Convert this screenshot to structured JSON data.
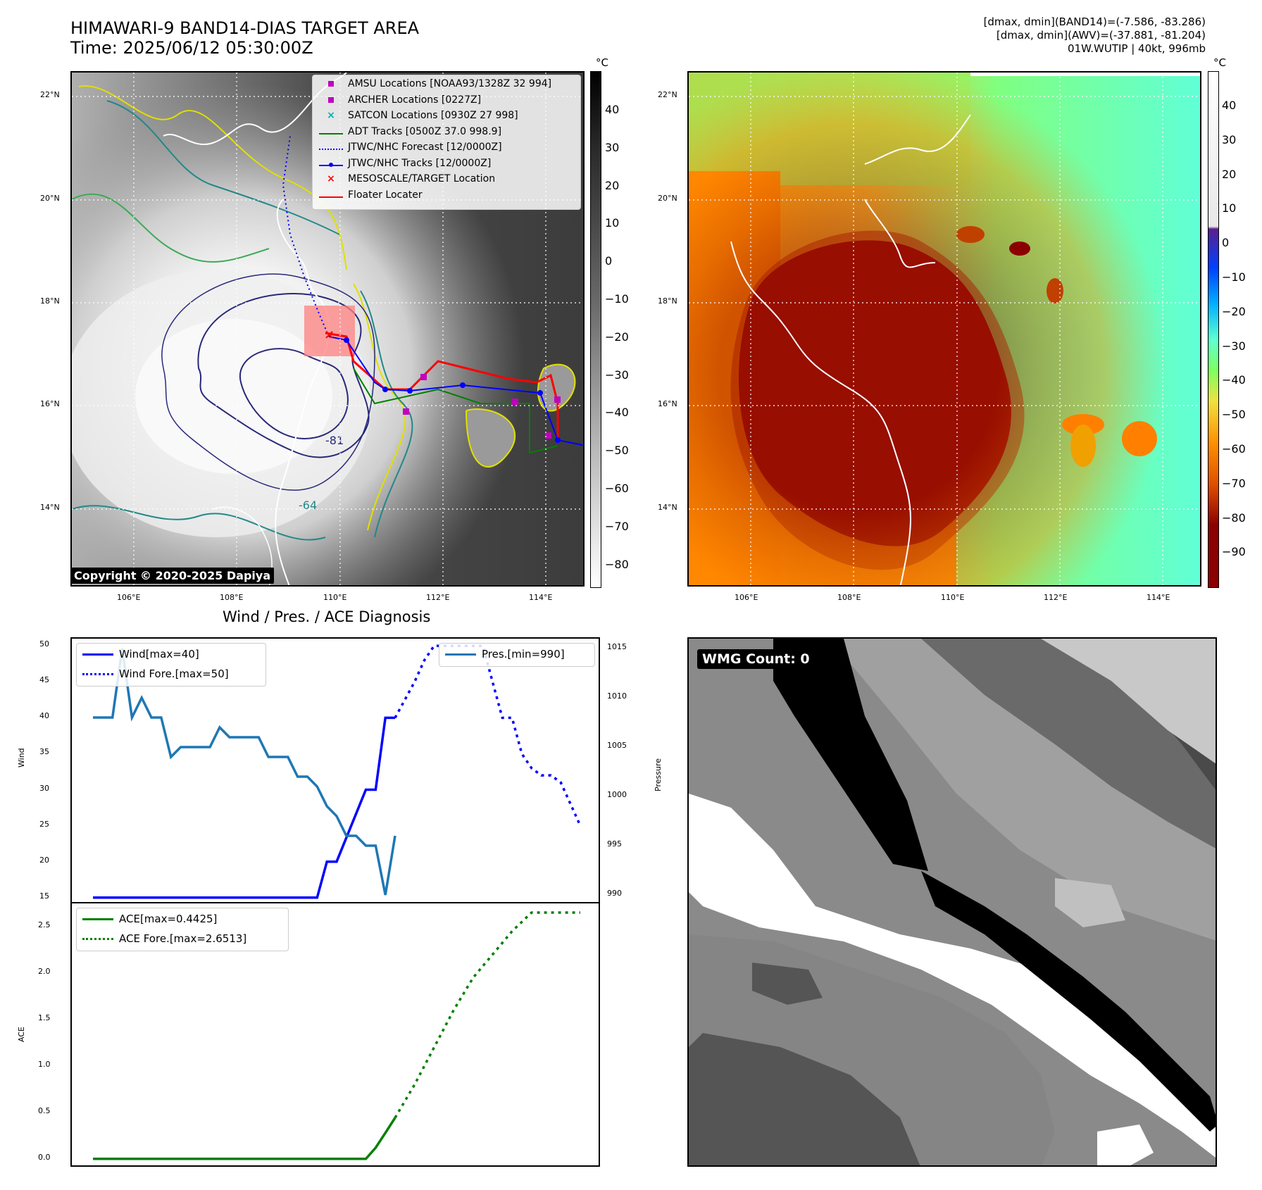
{
  "header": {
    "title_line1": "HIMAWARI-9 BAND14-DIAS TARGET AREA",
    "title_line2": "Time: 2025/06/12 05:30:00Z",
    "info_line1": "[dmax, dmin](BAND14)=(-7.586, -83.286)",
    "info_line2": "[dmax, dmin](AWV)=(-37.881, -81.204)",
    "info_line3": "01W.WUTIP | 40kt, 996mb"
  },
  "map_axes": {
    "lat_labels": [
      "22°N",
      "20°N",
      "18°N",
      "16°N",
      "14°N"
    ],
    "lon_labels": [
      "106°E",
      "108°E",
      "110°E",
      "112°E",
      "114°E"
    ]
  },
  "colorbar_left": {
    "unit": "°C",
    "ticks": [
      "40",
      "30",
      "20",
      "10",
      "0",
      "−10",
      "−20",
      "−30",
      "−40",
      "−50",
      "−60",
      "−70",
      "−80"
    ]
  },
  "colorbar_right": {
    "unit": "°C",
    "ticks": [
      "40",
      "30",
      "20",
      "10",
      "0",
      "−10",
      "−20",
      "−30",
      "−40",
      "−50",
      "−60",
      "−70",
      "−80",
      "−90"
    ]
  },
  "legend": {
    "items": [
      {
        "label": "AMSU Locations [NOAA93/1328Z 32 994]",
        "marker": "square",
        "color": "#c000c0"
      },
      {
        "label": "ARCHER Locations [0227Z]",
        "marker": "square",
        "color": "#c000c0"
      },
      {
        "label": "SATCON Locations [0930Z 27 998]",
        "marker": "x",
        "color": "#00b0b0"
      },
      {
        "label": "ADT Tracks [0500Z 37.0 998.9]",
        "marker": "line",
        "color": "#008000"
      },
      {
        "label": "JTWC/NHC Forecast [12/0000Z]",
        "marker": "dotted",
        "color": "#0000ff"
      },
      {
        "label": "JTWC/NHC Tracks [12/0000Z]",
        "marker": "line-dot",
        "color": "#0000ff"
      },
      {
        "label": "MESOSCALE/TARGET Location",
        "marker": "x",
        "color": "#ff0000"
      },
      {
        "label": "Floater Locater",
        "marker": "line",
        "color": "#ff0000"
      }
    ]
  },
  "copyright": "Copyright © 2020-2025 Dapiya",
  "contour_labels": [
    "-81",
    "-64"
  ],
  "wmg": {
    "label": "WMG Count: 0"
  },
  "chart_data": [
    {
      "type": "line",
      "title": "Wind / Pres. / ACE Diagnosis",
      "ylabel": "Wind",
      "ylabel_right": "Pressure",
      "ylim": [
        14,
        51
      ],
      "ylim_right": [
        989,
        1016
      ],
      "x": [
        0,
        1,
        2,
        3,
        4,
        5,
        6,
        7,
        8,
        9,
        10,
        11,
        12,
        13,
        14,
        15,
        16,
        17,
        18,
        19,
        20,
        21,
        22,
        23,
        24,
        25,
        26,
        27,
        28,
        29,
        30,
        31,
        32,
        33,
        34,
        35,
        36,
        37,
        38,
        39,
        40,
        41,
        42,
        43,
        44,
        45,
        46,
        47,
        48,
        49,
        50
      ],
      "yticks": [
        "50",
        "45",
        "40",
        "35",
        "30",
        "25",
        "20",
        "15"
      ],
      "yticks_right": [
        "1015",
        "1010",
        "1005",
        "1000",
        "995",
        "990"
      ],
      "series": [
        {
          "name": "Wind[max=40]",
          "axis": "left",
          "color": "#0000ff",
          "style": "solid",
          "x": [
            0,
            23,
            24,
            25,
            28,
            29,
            30,
            31
          ],
          "values": [
            15,
            15,
            20,
            20,
            30,
            30,
            40,
            40
          ]
        },
        {
          "name": "Wind Fore.[max=50]",
          "axis": "left",
          "color": "#0000ff",
          "style": "dotted",
          "x": [
            31,
            33,
            34,
            35,
            36,
            37,
            38,
            39,
            40,
            41,
            42,
            43,
            44,
            45,
            46,
            47,
            48,
            49,
            50
          ],
          "values": [
            40,
            45,
            48,
            50,
            50,
            50,
            50,
            50,
            50,
            45,
            40,
            40,
            35,
            33,
            32,
            32,
            31,
            28,
            25
          ]
        },
        {
          "name": "Pres.[min=990]",
          "axis": "right",
          "color": "#1f77b4",
          "style": "solid",
          "x": [
            0,
            2,
            3,
            4,
            5,
            6,
            7,
            8,
            9,
            10,
            11,
            12,
            13,
            14,
            15,
            16,
            17,
            18,
            19,
            20,
            21,
            22,
            23,
            24,
            25,
            26,
            27,
            28,
            29,
            30,
            31
          ],
          "values": [
            1008,
            1008,
            1015,
            1008,
            1010,
            1008,
            1008,
            1004,
            1005,
            1005,
            1005,
            1005,
            1007,
            1006,
            1006,
            1006,
            1006,
            1004,
            1004,
            1004,
            1002,
            1002,
            1001,
            999,
            998,
            996,
            996,
            995,
            995,
            990,
            996
          ]
        }
      ]
    },
    {
      "type": "line",
      "ylabel": "ACE",
      "ylim": [
        -0.1,
        2.75
      ],
      "x": [
        0,
        10,
        20,
        30,
        40,
        50
      ],
      "yticks": [
        "2.5",
        "2.0",
        "1.5",
        "1.0",
        "0.5",
        "0.0"
      ],
      "series": [
        {
          "name": "ACE[max=0.4425]",
          "color": "#008000",
          "style": "solid",
          "x": [
            0,
            28,
            29,
            30,
            31
          ],
          "values": [
            0,
            0,
            0.12,
            0.28,
            0.4425
          ]
        },
        {
          "name": "ACE Fore.[max=2.6513]",
          "color": "#008000",
          "style": "dotted",
          "x": [
            31,
            33,
            35,
            37,
            39,
            41,
            43,
            45,
            47,
            49,
            50
          ],
          "values": [
            0.4425,
            0.8,
            1.2,
            1.6,
            1.95,
            2.2,
            2.45,
            2.6513,
            2.6513,
            2.6513,
            2.6513
          ]
        }
      ]
    }
  ]
}
